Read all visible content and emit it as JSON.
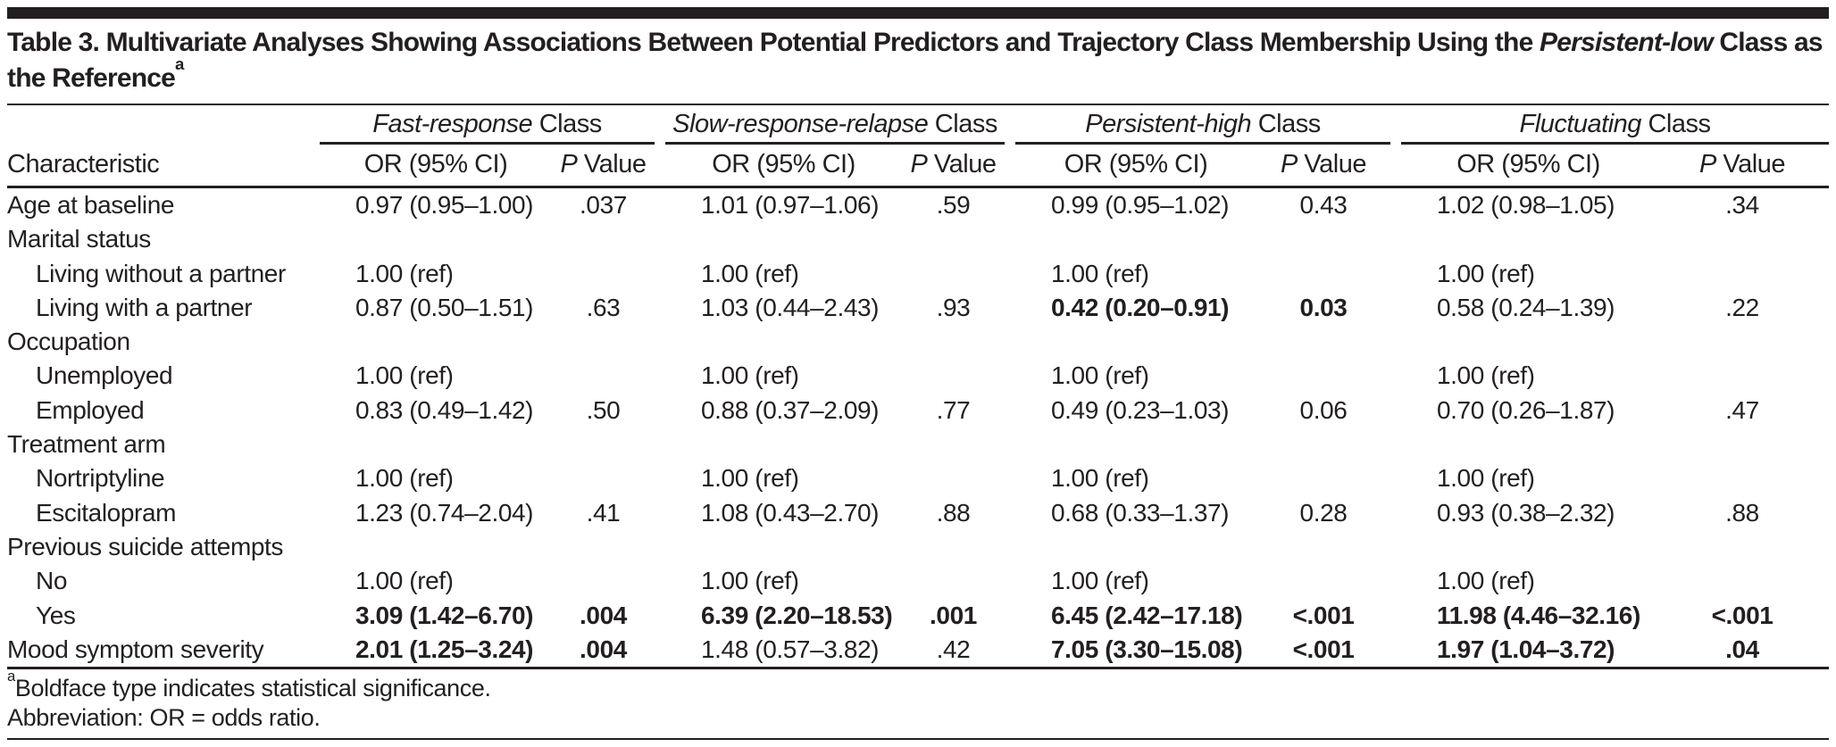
{
  "title": {
    "text_before_italic": "Table 3. Multivariate Analyses Showing Associations Between Potential Predictors and Trajectory Class Membership Using the ",
    "italic_term": "Persistent-low",
    "text_after_italic": " Class as the Reference",
    "footnote_marker": "a"
  },
  "header": {
    "characteristic_label": "Characteristic",
    "or_header": "OR (95% CI)",
    "p_header_italic": "P",
    "p_header_rest": " Value",
    "groups": [
      {
        "italic_name": "Fast-response",
        "rest": " Class"
      },
      {
        "italic_name": "Slow-response-relapse",
        "rest": " Class"
      },
      {
        "italic_name": "Persistent-high",
        "rest": " Class"
      },
      {
        "italic_name": "Fluctuating",
        "rest": " Class"
      }
    ]
  },
  "rows": [
    {
      "label": "Age at baseline",
      "indent": false,
      "cells": [
        {
          "or": "0.97 (0.95–1.00)",
          "p": ".037",
          "bold": false
        },
        {
          "or": "1.01 (0.97–1.06)",
          "p": ".59",
          "bold": false
        },
        {
          "or": "0.99 (0.95–1.02)",
          "p": "0.43",
          "bold": false
        },
        {
          "or": "1.02 (0.98–1.05)",
          "p": ".34",
          "bold": false
        }
      ]
    },
    {
      "label": "Marital status",
      "indent": false,
      "cells": []
    },
    {
      "label": "Living without a partner",
      "indent": true,
      "cells": [
        {
          "or": "1.00 (ref)",
          "p": "",
          "bold": false
        },
        {
          "or": "1.00 (ref)",
          "p": "",
          "bold": false
        },
        {
          "or": "1.00 (ref)",
          "p": "",
          "bold": false
        },
        {
          "or": "1.00 (ref)",
          "p": "",
          "bold": false
        }
      ]
    },
    {
      "label": "Living with a partner",
      "indent": true,
      "cells": [
        {
          "or": "0.87 (0.50–1.51)",
          "p": ".63",
          "bold": false
        },
        {
          "or": "1.03 (0.44–2.43)",
          "p": ".93",
          "bold": false
        },
        {
          "or": "0.42 (0.20–0.91)",
          "p": "0.03",
          "bold": true
        },
        {
          "or": "0.58 (0.24–1.39)",
          "p": ".22",
          "bold": false
        }
      ]
    },
    {
      "label": "Occupation",
      "indent": false,
      "cells": []
    },
    {
      "label": "Unemployed",
      "indent": true,
      "cells": [
        {
          "or": "1.00 (ref)",
          "p": "",
          "bold": false
        },
        {
          "or": "1.00 (ref)",
          "p": "",
          "bold": false
        },
        {
          "or": "1.00 (ref)",
          "p": "",
          "bold": false
        },
        {
          "or": "1.00 (ref)",
          "p": "",
          "bold": false
        }
      ]
    },
    {
      "label": "Employed",
      "indent": true,
      "cells": [
        {
          "or": "0.83 (0.49–1.42)",
          "p": ".50",
          "bold": false
        },
        {
          "or": "0.88 (0.37–2.09)",
          "p": ".77",
          "bold": false
        },
        {
          "or": "0.49 (0.23–1.03)",
          "p": "0.06",
          "bold": false
        },
        {
          "or": "0.70 (0.26–1.87)",
          "p": ".47",
          "bold": false
        }
      ]
    },
    {
      "label": "Treatment arm",
      "indent": false,
      "cells": []
    },
    {
      "label": "Nortriptyline",
      "indent": true,
      "cells": [
        {
          "or": "1.00 (ref)",
          "p": "",
          "bold": false
        },
        {
          "or": "1.00 (ref)",
          "p": "",
          "bold": false
        },
        {
          "or": "1.00 (ref)",
          "p": "",
          "bold": false
        },
        {
          "or": "1.00 (ref)",
          "p": "",
          "bold": false
        }
      ]
    },
    {
      "label": "Escitalopram",
      "indent": true,
      "cells": [
        {
          "or": "1.23 (0.74–2.04)",
          "p": ".41",
          "bold": false
        },
        {
          "or": "1.08 (0.43–2.70)",
          "p": ".88",
          "bold": false
        },
        {
          "or": "0.68 (0.33–1.37)",
          "p": "0.28",
          "bold": false
        },
        {
          "or": "0.93 (0.38–2.32)",
          "p": ".88",
          "bold": false
        }
      ]
    },
    {
      "label": "Previous suicide attempts",
      "indent": false,
      "cells": []
    },
    {
      "label": "No",
      "indent": true,
      "cells": [
        {
          "or": "1.00 (ref)",
          "p": "",
          "bold": false
        },
        {
          "or": "1.00 (ref)",
          "p": "",
          "bold": false
        },
        {
          "or": "1.00 (ref)",
          "p": "",
          "bold": false
        },
        {
          "or": "1.00 (ref)",
          "p": "",
          "bold": false
        }
      ]
    },
    {
      "label": "Yes",
      "indent": true,
      "cells": [
        {
          "or": "3.09 (1.42–6.70)",
          "p": ".004",
          "bold": true
        },
        {
          "or": "6.39 (2.20–18.53)",
          "p": ".001",
          "bold": true
        },
        {
          "or": "6.45 (2.42–17.18)",
          "p": "<.001",
          "bold": true
        },
        {
          "or": "11.98 (4.46–32.16)",
          "p": "<.001",
          "bold": true
        }
      ]
    },
    {
      "label": "Mood symptom severity",
      "indent": false,
      "cells": [
        {
          "or": "2.01 (1.25–3.24)",
          "p": ".004",
          "bold": true
        },
        {
          "or": "1.48 (0.57–3.82)",
          "p": ".42",
          "bold": false
        },
        {
          "or": "7.05 (3.30–15.08)",
          "p": "<.001",
          "bold": true
        },
        {
          "or": "1.97 (1.04–3.72)",
          "p": ".04",
          "bold": true
        }
      ]
    }
  ],
  "footnotes": [
    {
      "marker": "a",
      "text": "Boldface type indicates statistical significance."
    },
    {
      "marker": "",
      "text": "Abbreviation: OR = odds ratio."
    }
  ]
}
